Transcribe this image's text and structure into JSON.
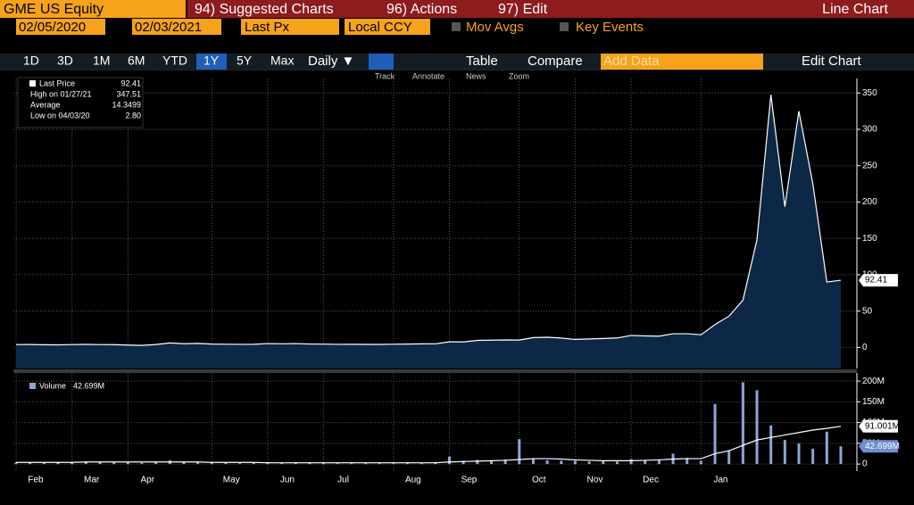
{
  "toolbar": {
    "ticker": "GME US Equity",
    "menus": [
      "94) Suggested Charts",
      "96) Actions",
      "97) Edit"
    ],
    "view": "Line Chart",
    "start_date": "02/05/2020",
    "end_date": "02/03/2021",
    "field": "Last Px",
    "currency": "Local CCY",
    "toggles": [
      "Mov Avgs",
      "Key Events"
    ],
    "periods": [
      "1D",
      "3D",
      "1M",
      "6M",
      "YTD",
      "1Y",
      "5Y",
      "Max"
    ],
    "active_period": 5,
    "frequency": "Daily ▼",
    "table": "Table",
    "compare": "Compare",
    "add_data": "Add Data",
    "edit_chart": "Edit Chart",
    "tools": [
      "Track",
      "Annotate",
      "News",
      "Zoom"
    ]
  },
  "chart_data": [
    {
      "type": "line",
      "stats": {
        "average_label": "Average",
        "average": 14.3499,
        "high_label": "High on 01/27/21",
        "low_label": "Low on 04/03/20"
      },
      "categories": [
        "Feb",
        null,
        null,
        null,
        "Mar",
        null,
        null,
        null,
        "Apr",
        null,
        null,
        null,
        null,
        null,
        "May",
        null,
        null,
        null,
        "Jun",
        null,
        null,
        null,
        "Jul",
        null,
        null,
        null,
        null,
        "Aug",
        null,
        null,
        null,
        "Sep",
        null,
        null,
        null,
        null,
        "Oct",
        null,
        null,
        null,
        "Nov",
        null,
        null,
        null,
        "Dec",
        null,
        null,
        null,
        null,
        "Jan",
        null,
        null,
        null,
        null,
        null,
        null,
        null,
        null,
        null,
        null
      ],
      "series": [
        {
          "name": "Last Price",
          "color": "#ffffff",
          "fill": "#0d2747",
          "values": [
            3.9,
            4.0,
            3.7,
            3.5,
            3.9,
            4.1,
            3.9,
            3.8,
            3.2,
            2.8,
            4.0,
            6.1,
            5.1,
            5.5,
            4.6,
            4.4,
            4.2,
            4.3,
            5.3,
            5.0,
            5.3,
            4.7,
            4.5,
            4.2,
            4.3,
            4.1,
            4.1,
            4.4,
            4.6,
            4.9,
            5.0,
            7.7,
            7.5,
            9.7,
            10.0,
            10.3,
            10.1,
            13.5,
            14.0,
            12.9,
            11.0,
            11.7,
            12.3,
            13.0,
            16.5,
            15.8,
            15.5,
            18.8,
            18.8,
            17.4,
            31.4,
            43.0,
            65.0,
            147.9,
            347.51,
            193.6,
            325.0,
            225.0,
            90.0,
            92.41
          ],
          "value_labels": [
            null,
            null,
            null,
            null,
            null,
            null,
            null,
            null,
            null,
            "2.80",
            null,
            null,
            null,
            null,
            null,
            null,
            null,
            null,
            null,
            null,
            null,
            null,
            null,
            null,
            null,
            null,
            null,
            null,
            null,
            null,
            null,
            null,
            null,
            null,
            null,
            null,
            null,
            null,
            null,
            null,
            null,
            null,
            null,
            null,
            null,
            null,
            null,
            null,
            null,
            null,
            null,
            null,
            null,
            null,
            null,
            null,
            null,
            null,
            null,
            null
          ]
        }
      ],
      "ylim": [
        -29,
        365
      ],
      "yticks": [
        0,
        50,
        100,
        150,
        200,
        250,
        300,
        350
      ],
      "grid": true
    },
    {
      "type": "bar",
      "series": [
        {
          "name": "Volume",
          "color": "#8ea6d6",
          "values": [
            4,
            3,
            3,
            5,
            5,
            6,
            5,
            4,
            4,
            3,
            6,
            9,
            5,
            4,
            3,
            3,
            2,
            3,
            4,
            3,
            3,
            4,
            3,
            2,
            2,
            2,
            2,
            2,
            3,
            3,
            4,
            18,
            8,
            10,
            9,
            11,
            60,
            14,
            9,
            8,
            8,
            6,
            7,
            6,
            12,
            10,
            9,
            25,
            15,
            8,
            145,
            33,
            197,
            178,
            93,
            58,
            50,
            37,
            78,
            42.699
          ],
          "value_labels": [
            null,
            null,
            null,
            null,
            null,
            null,
            null,
            null,
            null,
            null,
            null,
            null,
            null,
            null,
            null,
            null,
            null,
            null,
            null,
            null,
            null,
            null,
            null,
            null,
            null,
            null,
            null,
            null,
            null,
            null,
            null,
            null,
            null,
            null,
            null,
            null,
            null,
            null,
            null,
            null,
            null,
            null,
            null,
            null,
            null,
            null,
            null,
            null,
            null,
            null,
            null,
            null,
            null,
            null,
            null,
            null,
            null,
            null,
            null,
            "42.699M"
          ]
        },
        {
          "type": "line",
          "color": "#ffffff",
          "values": [
            4,
            4,
            4,
            4,
            4,
            5,
            5,
            5,
            5,
            5,
            5,
            5,
            5,
            5,
            4,
            4,
            4,
            4,
            3,
            3,
            3,
            3,
            3,
            3,
            3,
            3,
            3,
            3,
            3,
            3,
            3,
            5,
            6,
            7,
            8,
            9,
            11,
            13,
            13,
            12,
            10,
            9,
            8,
            8,
            8,
            9,
            10,
            12,
            13,
            13,
            25,
            32,
            45,
            58,
            64,
            70,
            76,
            82,
            86,
            91.001
          ],
          "value_labels": [
            null,
            null,
            null,
            null,
            null,
            null,
            null,
            null,
            null,
            null,
            null,
            null,
            null,
            null,
            null,
            null,
            null,
            null,
            null,
            null,
            null,
            null,
            null,
            null,
            null,
            null,
            null,
            null,
            null,
            null,
            null,
            null,
            null,
            null,
            null,
            null,
            null,
            null,
            null,
            null,
            null,
            null,
            null,
            null,
            null,
            null,
            null,
            null,
            null,
            null,
            null,
            null,
            null,
            null,
            null,
            null,
            null,
            null,
            null,
            "91.001M"
          ]
        }
      ],
      "ylim": [
        -17,
        211
      ],
      "yticks": [
        {
          "value": 0,
          "label": "0"
        },
        {
          "value": 50,
          "label": "50M"
        },
        {
          "value": 100,
          "label": "100M"
        },
        {
          "value": 150,
          "label": "150M"
        },
        {
          "value": 200,
          "label": "200M"
        }
      ],
      "grid": true
    }
  ]
}
